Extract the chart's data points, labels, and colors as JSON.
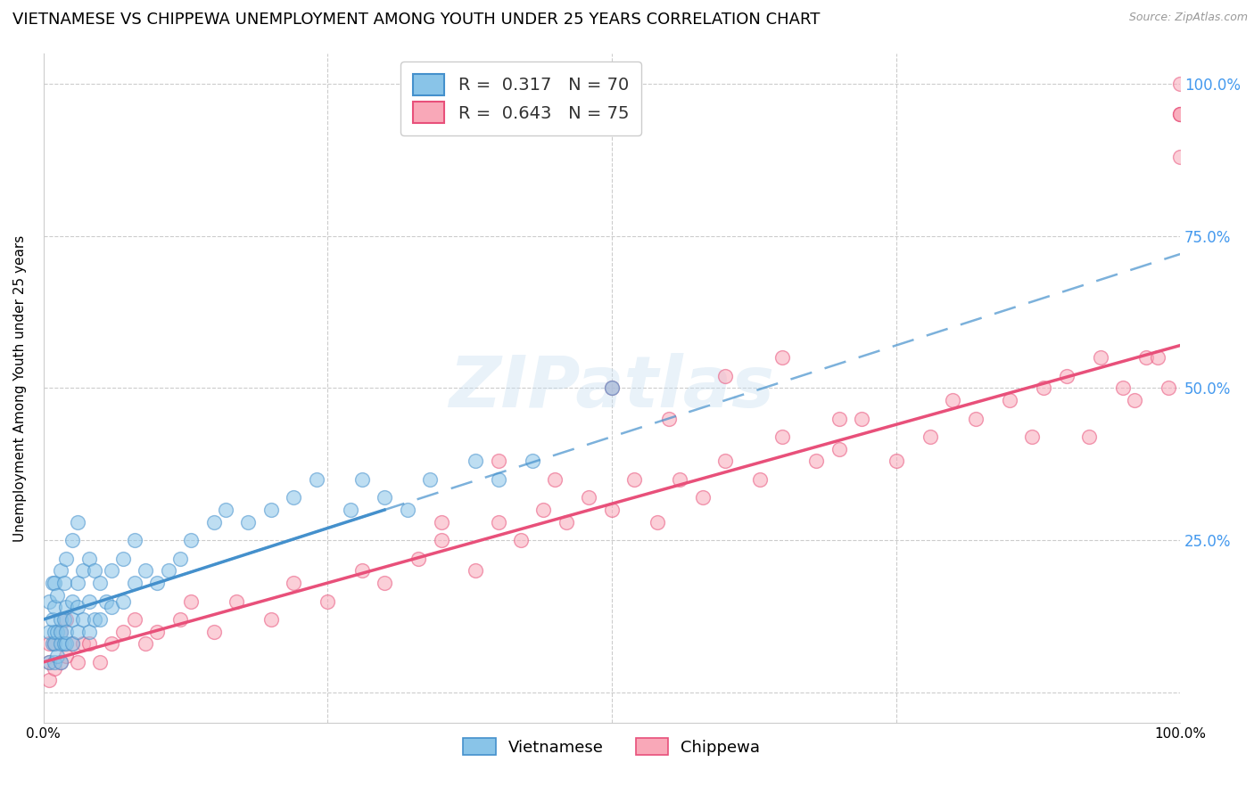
{
  "title": "VIETNAMESE VS CHIPPEWA UNEMPLOYMENT AMONG YOUTH UNDER 25 YEARS CORRELATION CHART",
  "source": "Source: ZipAtlas.com",
  "ylabel": "Unemployment Among Youth under 25 years",
  "legend_line1": "R =  0.317   N = 70",
  "legend_line2": "R =  0.643   N = 75",
  "color_vietnamese": "#89c4e8",
  "color_chippewa": "#f9a8b8",
  "color_trend_vietnamese": "#4490cc",
  "color_trend_chippewa": "#e8507a",
  "background_color": "#ffffff",
  "grid_color": "#cccccc",
  "title_fontsize": 13,
  "axis_label_fontsize": 11,
  "tick_label_fontsize": 11,
  "legend_fontsize": 13,
  "watermark": "ZIPatlas",
  "viet_trend_x0": 0.0,
  "viet_trend_x1": 0.3,
  "viet_trend_y0": 0.12,
  "viet_trend_y1": 0.3,
  "viet_trend_dashed_x0": 0.0,
  "viet_trend_dashed_x1": 1.0,
  "viet_trend_dashed_y0": 0.12,
  "viet_trend_dashed_y1": 0.72,
  "chip_trend_x0": 0.0,
  "chip_trend_x1": 1.0,
  "chip_trend_y0": 0.05,
  "chip_trend_y1": 0.57,
  "vietnamese_x": [
    0.005,
    0.005,
    0.005,
    0.008,
    0.008,
    0.008,
    0.01,
    0.01,
    0.01,
    0.01,
    0.01,
    0.012,
    0.012,
    0.012,
    0.015,
    0.015,
    0.015,
    0.015,
    0.015,
    0.018,
    0.018,
    0.018,
    0.02,
    0.02,
    0.02,
    0.02,
    0.025,
    0.025,
    0.025,
    0.025,
    0.03,
    0.03,
    0.03,
    0.03,
    0.035,
    0.035,
    0.04,
    0.04,
    0.04,
    0.045,
    0.045,
    0.05,
    0.05,
    0.055,
    0.06,
    0.06,
    0.07,
    0.07,
    0.08,
    0.08,
    0.09,
    0.1,
    0.11,
    0.12,
    0.13,
    0.15,
    0.16,
    0.18,
    0.2,
    0.22,
    0.24,
    0.27,
    0.28,
    0.3,
    0.32,
    0.34,
    0.38,
    0.4,
    0.43,
    0.5
  ],
  "vietnamese_y": [
    0.05,
    0.1,
    0.15,
    0.08,
    0.12,
    0.18,
    0.05,
    0.08,
    0.1,
    0.14,
    0.18,
    0.06,
    0.1,
    0.16,
    0.05,
    0.08,
    0.1,
    0.12,
    0.2,
    0.08,
    0.12,
    0.18,
    0.08,
    0.1,
    0.14,
    0.22,
    0.08,
    0.12,
    0.15,
    0.25,
    0.1,
    0.14,
    0.18,
    0.28,
    0.12,
    0.2,
    0.1,
    0.15,
    0.22,
    0.12,
    0.2,
    0.12,
    0.18,
    0.15,
    0.14,
    0.2,
    0.15,
    0.22,
    0.18,
    0.25,
    0.2,
    0.18,
    0.2,
    0.22,
    0.25,
    0.28,
    0.3,
    0.28,
    0.3,
    0.32,
    0.35,
    0.3,
    0.35,
    0.32,
    0.3,
    0.35,
    0.38,
    0.35,
    0.38,
    0.5
  ],
  "chippewa_x": [
    0.005,
    0.005,
    0.005,
    0.01,
    0.01,
    0.015,
    0.015,
    0.02,
    0.02,
    0.025,
    0.03,
    0.035,
    0.04,
    0.05,
    0.06,
    0.07,
    0.08,
    0.09,
    0.1,
    0.12,
    0.13,
    0.15,
    0.17,
    0.2,
    0.22,
    0.25,
    0.28,
    0.3,
    0.33,
    0.35,
    0.38,
    0.4,
    0.42,
    0.44,
    0.46,
    0.48,
    0.5,
    0.52,
    0.54,
    0.56,
    0.58,
    0.6,
    0.63,
    0.65,
    0.68,
    0.7,
    0.72,
    0.75,
    0.78,
    0.8,
    0.82,
    0.85,
    0.87,
    0.88,
    0.9,
    0.92,
    0.93,
    0.95,
    0.96,
    0.97,
    0.98,
    0.99,
    1.0,
    1.0,
    1.0,
    1.0,
    1.0,
    0.5,
    0.55,
    0.6,
    0.65,
    0.7,
    0.4,
    0.45,
    0.35
  ],
  "chippewa_y": [
    0.02,
    0.05,
    0.08,
    0.04,
    0.08,
    0.05,
    0.1,
    0.06,
    0.12,
    0.08,
    0.05,
    0.08,
    0.08,
    0.05,
    0.08,
    0.1,
    0.12,
    0.08,
    0.1,
    0.12,
    0.15,
    0.1,
    0.15,
    0.12,
    0.18,
    0.15,
    0.2,
    0.18,
    0.22,
    0.25,
    0.2,
    0.28,
    0.25,
    0.3,
    0.28,
    0.32,
    0.3,
    0.35,
    0.28,
    0.35,
    0.32,
    0.38,
    0.35,
    0.42,
    0.38,
    0.4,
    0.45,
    0.38,
    0.42,
    0.48,
    0.45,
    0.48,
    0.42,
    0.5,
    0.52,
    0.42,
    0.55,
    0.5,
    0.48,
    0.55,
    0.55,
    0.5,
    0.88,
    0.95,
    0.95,
    1.0,
    0.95,
    0.5,
    0.45,
    0.52,
    0.55,
    0.45,
    0.38,
    0.35,
    0.28
  ],
  "xlim": [
    0.0,
    1.0
  ],
  "ylim": [
    -0.05,
    1.05
  ]
}
